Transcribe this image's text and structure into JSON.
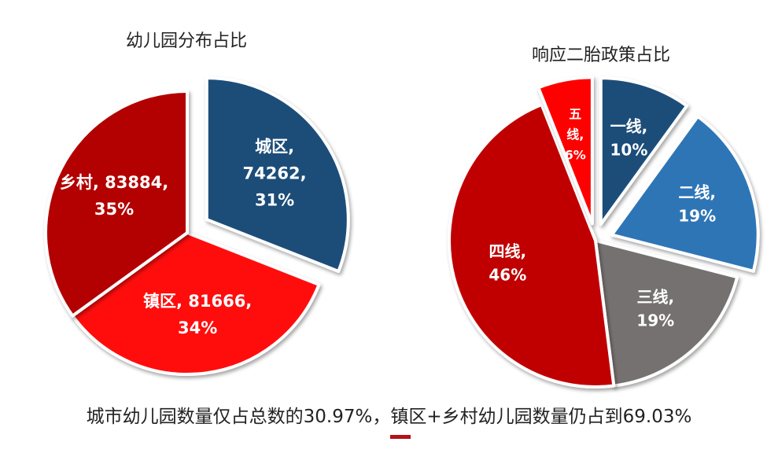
{
  "chart_data": [
    {
      "type": "pie",
      "title": "幼儿园分布占比",
      "categories": [
        "城区",
        "镇区",
        "乡村"
      ],
      "values": [
        74262,
        81666,
        83884
      ],
      "percents": [
        31,
        34,
        35
      ],
      "labels": [
        [
          "城区,",
          "74262,",
          "31%"
        ],
        [
          "镇区, 81666,",
          "34%"
        ],
        [
          "乡村, 83884,",
          "35%"
        ]
      ],
      "colors": [
        "#1f4e79",
        "#ff1111",
        "#b30000"
      ],
      "exploded": [
        "城区"
      ]
    },
    {
      "type": "pie",
      "title": "响应二胎政策占比",
      "categories": [
        "一线",
        "二线",
        "三线",
        "四线",
        "五线"
      ],
      "percents": [
        10,
        19,
        19,
        46,
        6
      ],
      "labels": [
        [
          "一线,",
          "10%"
        ],
        [
          "二线,",
          "19%"
        ],
        [
          "三线,",
          "19%"
        ],
        [
          "四线,",
          "46%"
        ],
        [
          "五",
          "线,",
          "6%"
        ]
      ],
      "colors": [
        "#1f4e79",
        "#2e75b6",
        "#767171",
        "#c00000",
        "#ff0000"
      ],
      "exploded": [
        "一线",
        "二线",
        "五线"
      ]
    }
  ],
  "caption": "城市幼儿园数量仅占总数的30.97%，镇区+乡村幼儿园数量仍占到69.03%",
  "accent_color": "#b3121a"
}
